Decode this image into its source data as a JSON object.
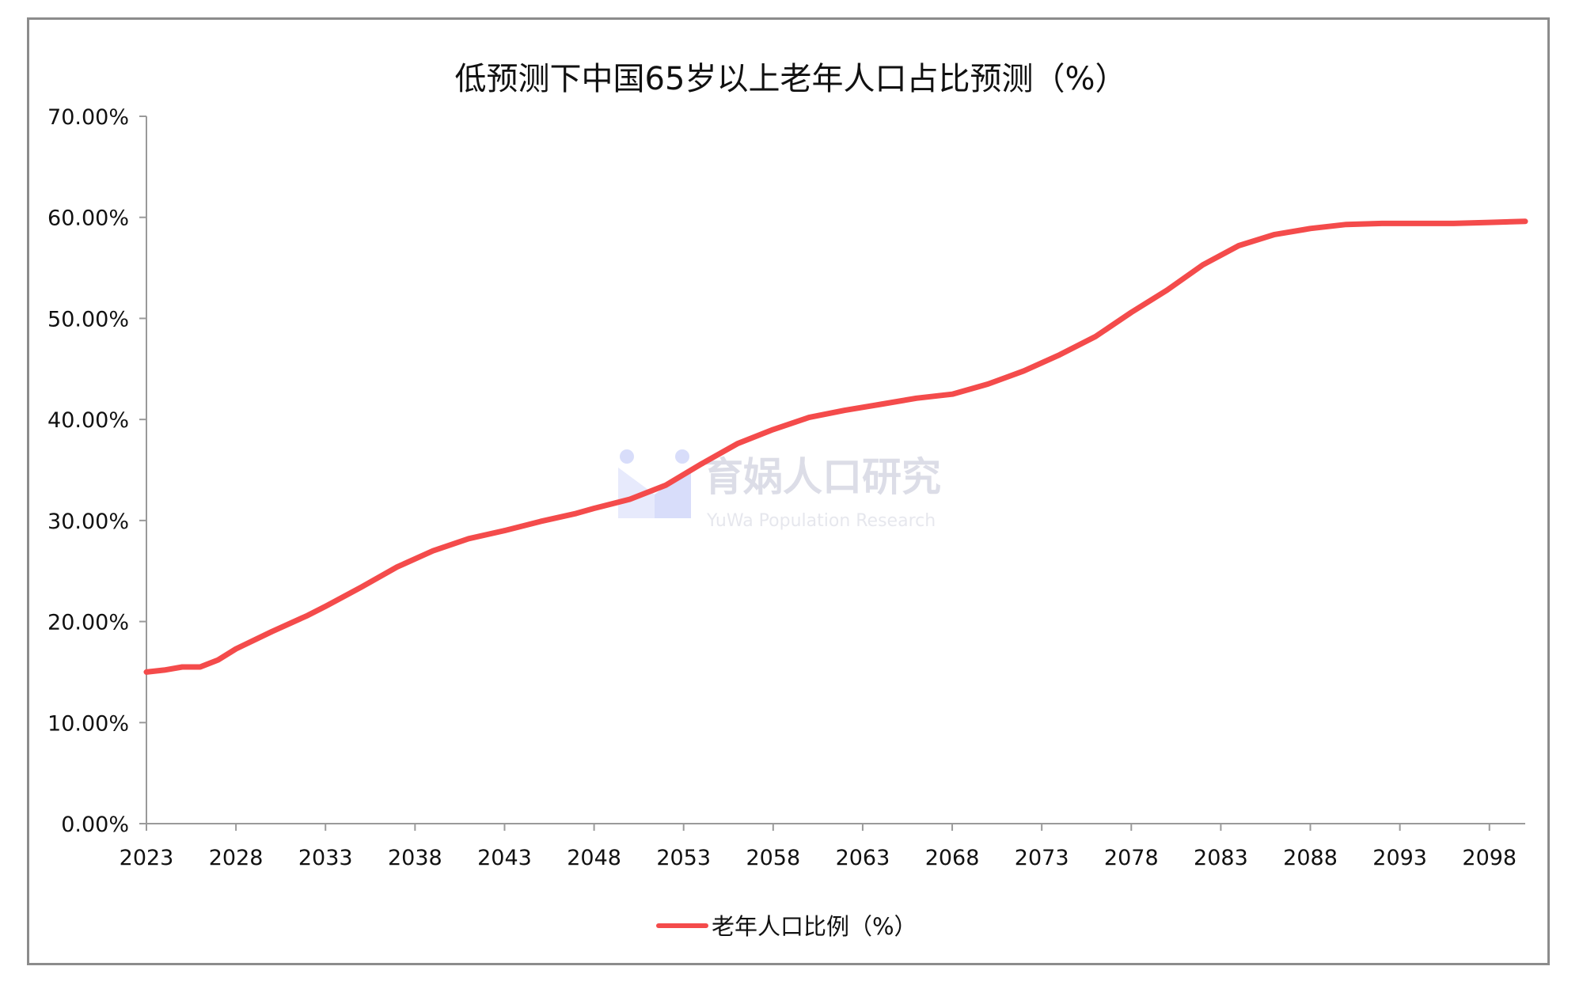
{
  "colors": {
    "line": "#f44b4b",
    "axis": "#9a9a9a",
    "frame": "#8c8c8c",
    "watermark_primary": "#aab3f2",
    "watermark_text": "#c7c9d8"
  },
  "watermark": {
    "name": "育娲人口研究",
    "subtitle": "YuWa Population Research"
  },
  "chart_data": {
    "type": "line",
    "title": "低预测下中国65岁以上老年人口占比预测（%）",
    "xlabel": "",
    "ylabel": "",
    "ylim": [
      0,
      70
    ],
    "xlim": [
      2023,
      2100
    ],
    "y_ticks": [
      "0.00%",
      "10.00%",
      "20.00%",
      "30.00%",
      "40.00%",
      "50.00%",
      "60.00%",
      "70.00%"
    ],
    "x_ticks": [
      "2023",
      "2028",
      "2033",
      "2038",
      "2043",
      "2048",
      "2053",
      "2058",
      "2063",
      "2068",
      "2073",
      "2078",
      "2083",
      "2088",
      "2093",
      "2098"
    ],
    "grid": false,
    "legend_position": "bottom",
    "series": [
      {
        "name": "老年人口比例（%）",
        "x": [
          2023,
          2024,
          2025,
          2026,
          2027,
          2028,
          2030,
          2032,
          2033,
          2035,
          2037,
          2039,
          2041,
          2043,
          2045,
          2047,
          2048,
          2050,
          2052,
          2054,
          2056,
          2058,
          2060,
          2062,
          2064,
          2066,
          2068,
          2070,
          2072,
          2074,
          2076,
          2078,
          2080,
          2082,
          2084,
          2086,
          2088,
          2090,
          2092,
          2094,
          2096,
          2098,
          2100
        ],
        "values": [
          15.0,
          15.2,
          15.5,
          15.5,
          16.2,
          17.3,
          19.0,
          20.6,
          21.5,
          23.4,
          25.4,
          27.0,
          28.2,
          29.0,
          29.9,
          30.7,
          31.2,
          32.1,
          33.5,
          35.6,
          37.6,
          39.0,
          40.2,
          40.9,
          41.5,
          42.1,
          42.5,
          43.5,
          44.8,
          46.4,
          48.2,
          50.6,
          52.8,
          55.3,
          57.2,
          58.3,
          58.9,
          59.3,
          59.4,
          59.4,
          59.4,
          59.5,
          59.6
        ]
      }
    ]
  }
}
